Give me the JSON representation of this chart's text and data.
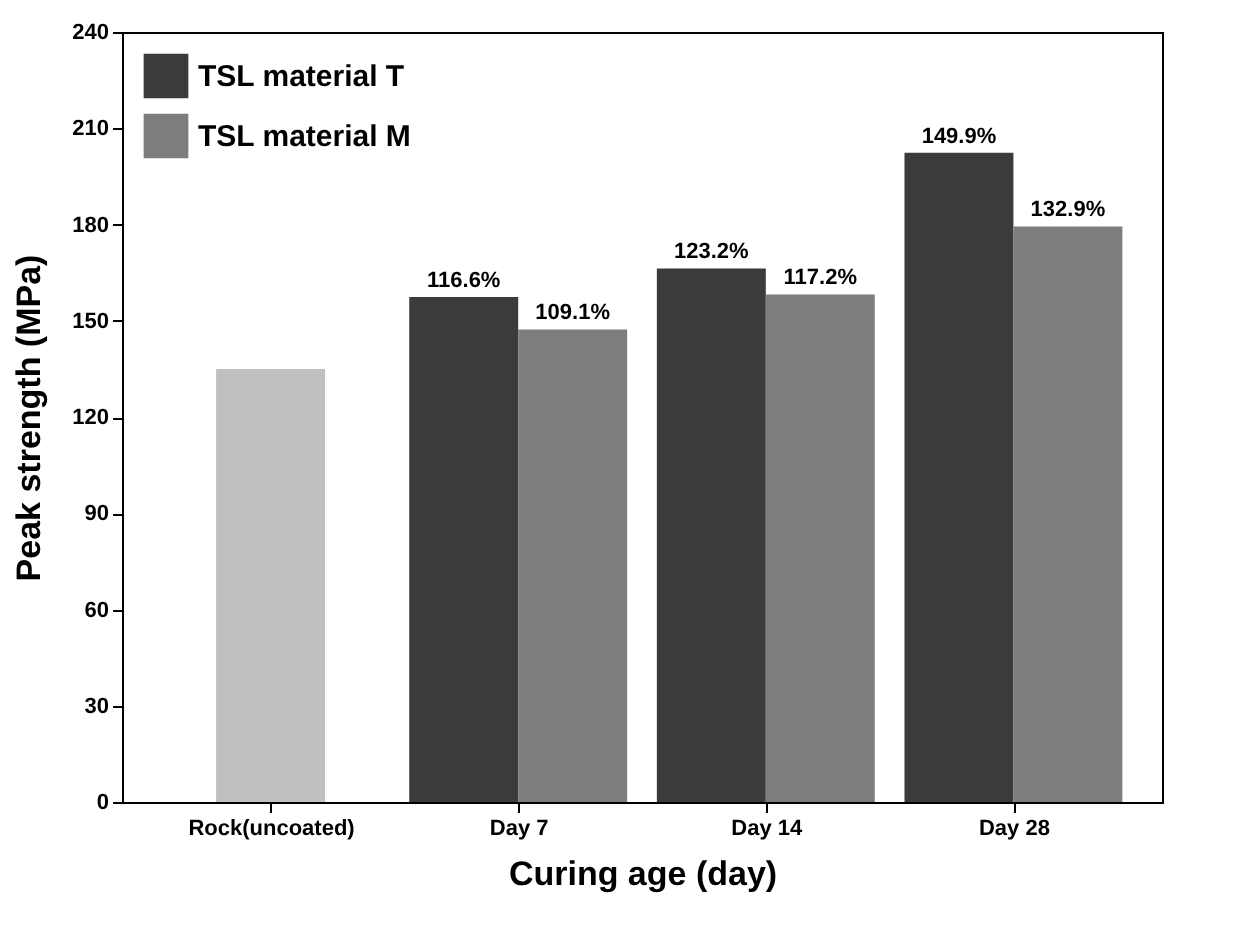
{
  "chart_data": {
    "type": "bar",
    "xlabel": "Curing age (day)",
    "ylabel": "Peak strength (MPa)",
    "categories": [
      "Rock(uncoated)",
      "Day 7",
      "Day 14",
      "Day 28"
    ],
    "series": [
      {
        "color": "#c0c0c0",
        "values": [
          135,
          null,
          null,
          null
        ]
      },
      {
        "name": "TSL material T",
        "color": "#3b3b3b",
        "values": [
          null,
          157.4,
          166.3,
          202.4
        ]
      },
      {
        "name": "TSL material M",
        "color": "#7d7d7d",
        "values": [
          null,
          147.3,
          158.2,
          179.4
        ]
      }
    ],
    "annotations": [
      {
        "text": "116.6%",
        "x": "Day 7",
        "y": 157.4
      },
      {
        "text": "109.1%",
        "x": "Day 7",
        "y": 147.3
      },
      {
        "text": "123.2%",
        "x": "Day 14",
        "y": 166.3
      },
      {
        "text": "117.2%",
        "x": "Day 14",
        "y": 158.2
      },
      {
        "text": "149.9%",
        "x": "Day 28",
        "y": 202.4
      },
      {
        "text": "132.9%",
        "x": "Day 28",
        "y": 179.4
      }
    ],
    "ylim": [
      0,
      240
    ],
    "yticks": [
      0,
      30,
      60,
      90,
      120,
      150,
      180,
      210,
      240
    ],
    "grid": false,
    "legend": "top left"
  }
}
